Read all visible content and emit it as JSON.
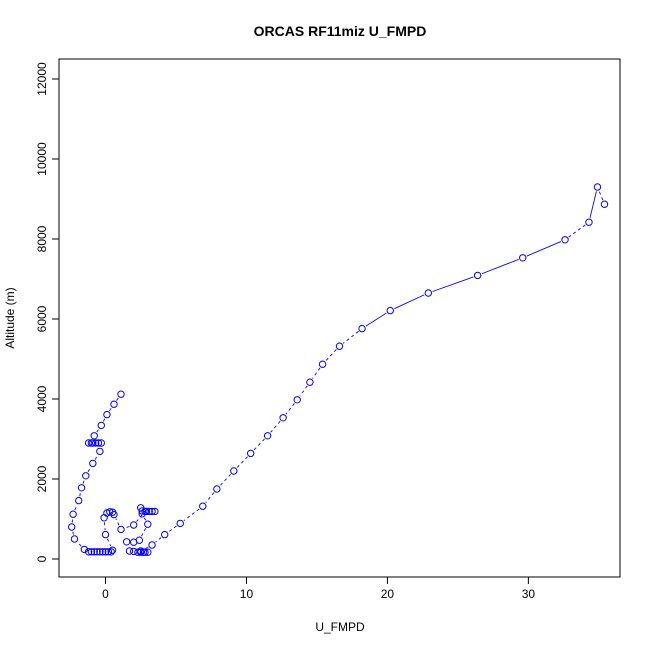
{
  "chart_data": {
    "type": "scatter",
    "title": "ORCAS RF11miz U_FMPD",
    "xlabel": "U_FMPD",
    "ylabel": "Altitude (m)",
    "xlim": [
      -3.3,
      36.5
    ],
    "ylim": [
      -450,
      12500
    ],
    "xticks": [
      0,
      10,
      20,
      30
    ],
    "yticks": [
      0,
      2000,
      4000,
      6000,
      8000,
      10000,
      12000
    ],
    "grid": false,
    "legend": "none",
    "series": [
      {
        "color": "#0000ff",
        "line": "dashed",
        "marker": "open-circle",
        "points": [
          [
            35.4,
            8870
          ],
          [
            34.9,
            9300
          ],
          [
            34.3,
            8420
          ],
          [
            32.6,
            7980
          ],
          [
            29.6,
            7530
          ],
          [
            26.4,
            7090
          ],
          [
            22.9,
            6650
          ],
          [
            20.2,
            6210
          ],
          [
            18.2,
            5760
          ],
          [
            16.6,
            5320
          ],
          [
            15.4,
            4870
          ],
          [
            14.5,
            4420
          ],
          [
            13.6,
            3980
          ],
          [
            12.6,
            3530
          ],
          [
            11.5,
            3080
          ],
          [
            10.3,
            2640
          ],
          [
            9.1,
            2200
          ],
          [
            7.9,
            1750
          ],
          [
            6.9,
            1320
          ],
          [
            5.3,
            890
          ],
          [
            4.2,
            610
          ],
          [
            3.3,
            350
          ],
          [
            2.5,
            200
          ],
          [
            2.5,
            170
          ],
          [
            2.8,
            170
          ],
          [
            3.0,
            170
          ],
          [
            2.7,
            170
          ],
          [
            2.3,
            170
          ],
          [
            2.0,
            190
          ],
          [
            1.7,
            200
          ],
          [
            1.5,
            430
          ],
          [
            2.0,
            420
          ],
          [
            2.4,
            470
          ],
          [
            3.0,
            870
          ],
          [
            2.6,
            1130
          ],
          [
            2.5,
            1280
          ],
          [
            2.6,
            1200
          ],
          [
            2.9,
            1190
          ],
          [
            3.1,
            1190
          ],
          [
            3.3,
            1190
          ],
          [
            3.5,
            1190
          ],
          [
            2.8,
            1190
          ],
          [
            2.0,
            850
          ],
          [
            1.1,
            740
          ],
          [
            0.6,
            1110
          ],
          [
            0.5,
            1170
          ],
          [
            0.3,
            1180
          ],
          [
            0.1,
            1150
          ],
          [
            -0.1,
            1030
          ],
          [
            0.0,
            610
          ],
          [
            0.5,
            220
          ],
          [
            0.4,
            180
          ],
          [
            0.2,
            180
          ],
          [
            0.0,
            180
          ],
          [
            -0.2,
            180
          ],
          [
            -0.4,
            180
          ],
          [
            -0.6,
            180
          ],
          [
            -0.8,
            180
          ],
          [
            -1.0,
            180
          ],
          [
            -1.2,
            180
          ],
          [
            -1.5,
            240
          ],
          [
            -2.2,
            500
          ],
          [
            -2.4,
            800
          ],
          [
            -2.3,
            1120
          ],
          [
            -1.9,
            1460
          ],
          [
            -1.7,
            1780
          ],
          [
            -1.4,
            2080
          ],
          [
            -0.9,
            2390
          ],
          [
            -0.4,
            2690
          ],
          [
            -0.3,
            2900
          ],
          [
            -0.5,
            2900
          ],
          [
            -0.7,
            2900
          ],
          [
            -0.9,
            2900
          ],
          [
            -1.0,
            2900
          ],
          [
            -1.2,
            2900
          ],
          [
            -0.8,
            3080
          ],
          [
            -0.3,
            3340
          ],
          [
            0.1,
            3610
          ],
          [
            0.6,
            3870
          ],
          [
            1.1,
            4120
          ]
        ]
      }
    ]
  }
}
